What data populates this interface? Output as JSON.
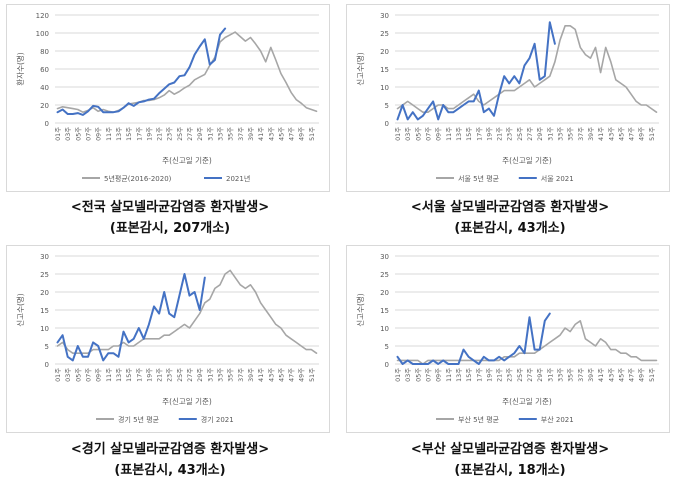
{
  "x_categories": [
    "01주",
    "02주",
    "03주",
    "04주",
    "05주",
    "06주",
    "07주",
    "08주",
    "09주",
    "10주",
    "11주",
    "12주",
    "13주",
    "14주",
    "15주",
    "16주",
    "17주",
    "18주",
    "19주",
    "20주",
    "21주",
    "22주",
    "23주",
    "24주",
    "25주",
    "26주",
    "27주",
    "28주",
    "29주",
    "30주",
    "31주",
    "32주",
    "33주",
    "34주",
    "35주",
    "36주",
    "37주",
    "38주",
    "39주",
    "40주",
    "41주",
    "42주",
    "43주",
    "44주",
    "45주",
    "46주",
    "47주",
    "48주",
    "49주",
    "50주",
    "51주",
    "52주"
  ],
  "colors": {
    "avg": "#a6a6a6",
    "y2021": "#4472c4",
    "grid": "#d9d9d9",
    "axis_text": "#595959"
  },
  "chart_data": [
    {
      "type": "line",
      "ylabel": "환자수(명)",
      "xlabel": "주(신고일 기준)",
      "ylim": [
        0,
        120
      ],
      "yticks": [
        0,
        20,
        40,
        60,
        80,
        100,
        120
      ],
      "grid": true,
      "legend": "bottom",
      "caption_line1": "<전국 살모넬라균감염증 환자발생>",
      "caption_line2": "(표본감시, 207개소)",
      "series": [
        {
          "name": "5년평균(2016-2020)",
          "values": [
            16,
            18,
            17,
            16,
            15,
            12,
            14,
            17,
            13,
            15,
            13,
            12,
            14,
            17,
            21,
            22,
            23,
            25,
            25,
            26,
            28,
            31,
            36,
            32,
            35,
            39,
            42,
            48,
            51,
            54,
            64,
            73,
            90,
            95,
            98,
            101,
            96,
            91,
            95,
            88,
            80,
            68,
            84,
            70,
            55,
            45,
            34,
            26,
            22,
            17,
            15,
            13
          ]
        },
        {
          "name": "2021년",
          "values": [
            12,
            15,
            10,
            10,
            11,
            9,
            13,
            19,
            18,
            12,
            12,
            12,
            13,
            17,
            22,
            19,
            23,
            24,
            26,
            27,
            33,
            38,
            43,
            45,
            52,
            53,
            62,
            76,
            85,
            93,
            65,
            70,
            98,
            105
          ]
        }
      ]
    },
    {
      "type": "line",
      "ylabel": "신고수(명)",
      "xlabel": "주(신고일 기준)",
      "ylim": [
        0,
        30
      ],
      "yticks": [
        0,
        5,
        10,
        15,
        20,
        25,
        30
      ],
      "grid": true,
      "legend": "bottom",
      "caption_line1": "<서울 살모넬라균감염증 환자발생>",
      "caption_line2": "(표본감시, 43개소)",
      "series": [
        {
          "name": "서울 5년 평균",
          "values": [
            4,
            5,
            6,
            5,
            4,
            3,
            3,
            4,
            5,
            5,
            4,
            4,
            5,
            6,
            7,
            8,
            6,
            5,
            6,
            7,
            8,
            9,
            9,
            9,
            10,
            11,
            12,
            10,
            11,
            12,
            13,
            17,
            23,
            27,
            27,
            26,
            21,
            19,
            18,
            21,
            14,
            21,
            17,
            12,
            11,
            10,
            8,
            6,
            5,
            5,
            4,
            3
          ]
        },
        {
          "name": "서울 2021",
          "values": [
            1,
            5,
            1,
            3,
            1,
            2,
            4,
            6,
            1,
            5,
            3,
            3,
            4,
            5,
            6,
            6,
            9,
            3,
            4,
            2,
            8,
            13,
            11,
            13,
            11,
            16,
            18,
            22,
            12,
            13,
            28,
            22
          ]
        }
      ]
    },
    {
      "type": "line",
      "ylabel": "신고수(명)",
      "xlabel": "주(신고일 기준)",
      "ylim": [
        0,
        30
      ],
      "yticks": [
        0,
        5,
        10,
        15,
        20,
        25,
        30
      ],
      "grid": true,
      "legend": "bottom",
      "caption_line1": "<경기 살모넬라균감염증 환자발생>",
      "caption_line2": "(표본감시, 43개소)",
      "series": [
        {
          "name": "경기 5년 평균",
          "values": [
            5,
            6,
            4,
            3,
            3,
            3,
            3,
            4,
            4,
            4,
            4,
            5,
            5,
            6,
            5,
            5,
            6,
            7,
            7,
            7,
            7,
            8,
            8,
            9,
            10,
            11,
            10,
            12,
            14,
            17,
            18,
            21,
            22,
            25,
            26,
            24,
            22,
            21,
            22,
            20,
            17,
            15,
            13,
            11,
            10,
            8,
            7,
            6,
            5,
            4,
            4,
            3
          ]
        },
        {
          "name": "경기 2021",
          "values": [
            6,
            8,
            2,
            1,
            5,
            2,
            2,
            6,
            5,
            1,
            3,
            3,
            2,
            9,
            6,
            7,
            10,
            7,
            11,
            16,
            14,
            20,
            14,
            13,
            19,
            25,
            19,
            20,
            15,
            24
          ]
        }
      ]
    },
    {
      "type": "line",
      "ylabel": "신고수(명)",
      "xlabel": "주(신고일 기준)",
      "ylim": [
        0,
        30
      ],
      "yticks": [
        0,
        5,
        10,
        15,
        20,
        25,
        30
      ],
      "grid": true,
      "legend": "bottom",
      "caption_line1": "<부산 살모넬라균감염증 환자발생>",
      "caption_line2": "(표본감시, 18개소)",
      "series": [
        {
          "name": "부산 5년 평균",
          "values": [
            1,
            1,
            1,
            1,
            1,
            0,
            1,
            1,
            1,
            1,
            1,
            1,
            1,
            1,
            1,
            1,
            1,
            1,
            1,
            1,
            1,
            2,
            2,
            2,
            3,
            3,
            3,
            3,
            4,
            5,
            6,
            7,
            8,
            10,
            9,
            11,
            12,
            7,
            6,
            5,
            7,
            6,
            4,
            4,
            3,
            3,
            2,
            2,
            1,
            1,
            1,
            1
          ]
        },
        {
          "name": "부산 2021",
          "values": [
            2,
            0,
            1,
            0,
            0,
            0,
            0,
            1,
            0,
            1,
            0,
            0,
            0,
            4,
            2,
            1,
            0,
            2,
            1,
            1,
            2,
            1,
            2,
            3,
            5,
            3,
            13,
            4,
            4,
            12,
            14
          ]
        }
      ]
    }
  ]
}
